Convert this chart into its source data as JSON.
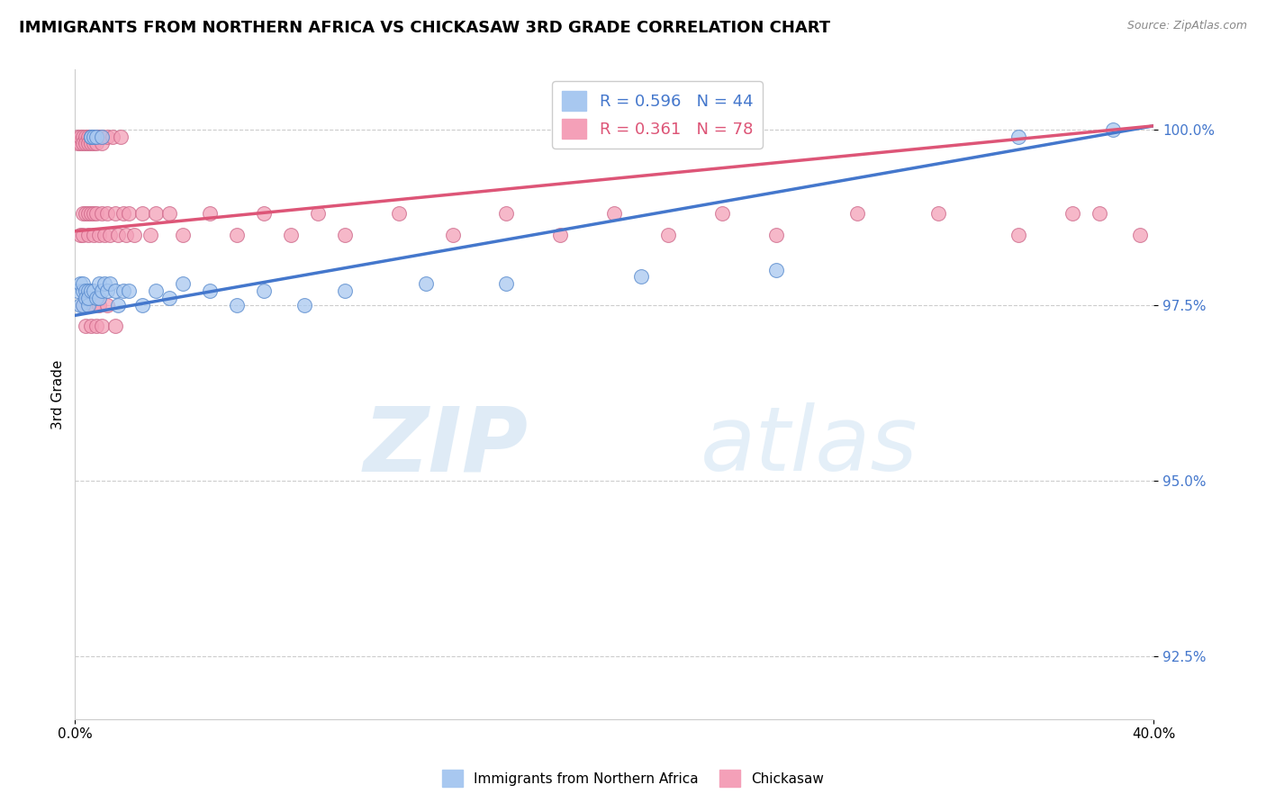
{
  "title": "IMMIGRANTS FROM NORTHERN AFRICA VS CHICKASAW 3RD GRADE CORRELATION CHART",
  "source_text": "Source: ZipAtlas.com",
  "xlabel_label": "Immigrants from Northern Africa",
  "ylabel_label": "3rd Grade",
  "x_min": 0.0,
  "x_max": 0.4,
  "y_min": 0.916,
  "y_max": 1.0085,
  "x_ticks": [
    0.0,
    0.4
  ],
  "x_tick_labels": [
    "0.0%",
    "40.0%"
  ],
  "y_ticks": [
    0.925,
    0.95,
    0.975,
    1.0
  ],
  "y_tick_labels": [
    "92.5%",
    "95.0%",
    "97.5%",
    "100.0%"
  ],
  "blue_R": 0.596,
  "blue_N": 44,
  "pink_R": 0.361,
  "pink_N": 78,
  "blue_color": "#A8C8F0",
  "pink_color": "#F4A0B8",
  "blue_edge_color": "#5588CC",
  "pink_edge_color": "#CC6688",
  "blue_line_color": "#4477CC",
  "pink_line_color": "#DD5577",
  "watermark_zip": "ZIP",
  "watermark_atlas": "atlas",
  "blue_line_x0": 0.0,
  "blue_line_y0": 0.9735,
  "blue_line_x1": 0.4,
  "blue_line_y1": 1.0005,
  "pink_line_x0": 0.0,
  "pink_line_y0": 0.9855,
  "pink_line_x1": 0.4,
  "pink_line_y1": 1.0005,
  "blue_x": [
    0.001,
    0.002,
    0.002,
    0.003,
    0.003,
    0.003,
    0.004,
    0.004,
    0.005,
    0.005,
    0.005,
    0.006,
    0.006,
    0.006,
    0.007,
    0.007,
    0.008,
    0.008,
    0.009,
    0.009,
    0.01,
    0.01,
    0.011,
    0.012,
    0.013,
    0.015,
    0.016,
    0.018,
    0.02,
    0.025,
    0.03,
    0.035,
    0.04,
    0.05,
    0.06,
    0.07,
    0.085,
    0.1,
    0.13,
    0.16,
    0.21,
    0.26,
    0.35,
    0.385
  ],
  "blue_y": [
    0.977,
    0.975,
    0.978,
    0.977,
    0.975,
    0.978,
    0.977,
    0.976,
    0.977,
    0.975,
    0.976,
    0.999,
    0.999,
    0.977,
    0.999,
    0.977,
    0.999,
    0.976,
    0.978,
    0.976,
    0.999,
    0.977,
    0.978,
    0.977,
    0.978,
    0.977,
    0.975,
    0.977,
    0.977,
    0.975,
    0.977,
    0.976,
    0.978,
    0.977,
    0.975,
    0.977,
    0.975,
    0.977,
    0.978,
    0.978,
    0.979,
    0.98,
    0.999,
    1.0
  ],
  "pink_x": [
    0.001,
    0.001,
    0.002,
    0.002,
    0.002,
    0.003,
    0.003,
    0.003,
    0.003,
    0.004,
    0.004,
    0.004,
    0.005,
    0.005,
    0.005,
    0.005,
    0.006,
    0.006,
    0.006,
    0.007,
    0.007,
    0.007,
    0.007,
    0.008,
    0.008,
    0.008,
    0.009,
    0.009,
    0.01,
    0.01,
    0.01,
    0.011,
    0.012,
    0.012,
    0.013,
    0.014,
    0.015,
    0.016,
    0.017,
    0.018,
    0.019,
    0.02,
    0.022,
    0.025,
    0.028,
    0.03,
    0.035,
    0.04,
    0.05,
    0.06,
    0.07,
    0.08,
    0.09,
    0.1,
    0.12,
    0.14,
    0.16,
    0.18,
    0.2,
    0.22,
    0.24,
    0.26,
    0.29,
    0.32,
    0.35,
    0.37,
    0.38,
    0.395,
    0.003,
    0.004,
    0.005,
    0.006,
    0.007,
    0.008,
    0.009,
    0.01,
    0.012,
    0.015
  ],
  "pink_y": [
    0.999,
    0.998,
    0.998,
    0.999,
    0.985,
    0.999,
    0.998,
    0.988,
    0.985,
    0.999,
    0.998,
    0.988,
    0.999,
    0.998,
    0.988,
    0.985,
    0.999,
    0.998,
    0.988,
    0.999,
    0.998,
    0.988,
    0.985,
    0.999,
    0.998,
    0.988,
    0.999,
    0.985,
    0.999,
    0.998,
    0.988,
    0.985,
    0.999,
    0.988,
    0.985,
    0.999,
    0.988,
    0.985,
    0.999,
    0.988,
    0.985,
    0.988,
    0.985,
    0.988,
    0.985,
    0.988,
    0.988,
    0.985,
    0.988,
    0.985,
    0.988,
    0.985,
    0.988,
    0.985,
    0.988,
    0.985,
    0.988,
    0.985,
    0.988,
    0.985,
    0.988,
    0.985,
    0.988,
    0.988,
    0.985,
    0.988,
    0.988,
    0.985,
    0.975,
    0.972,
    0.975,
    0.972,
    0.975,
    0.972,
    0.975,
    0.972,
    0.975,
    0.972
  ]
}
